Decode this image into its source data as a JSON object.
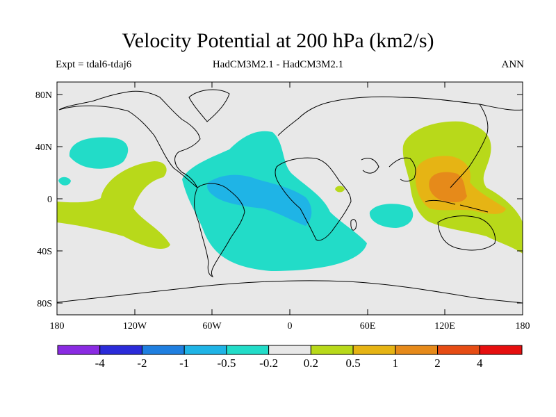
{
  "title": "Velocity Potential at 200 hPa (km2/s)",
  "subtitle_left": "Expt = tdal6-tdaj6",
  "subtitle_center": "HadCM3M2.1 - HadCM3M2.1",
  "subtitle_right": "ANN",
  "y_ticks": [
    "80N",
    "40N",
    "0",
    "40S",
    "80S"
  ],
  "x_ticks": [
    "180",
    "120W",
    "60W",
    "0",
    "60E",
    "120E",
    "180"
  ],
  "colorbar": {
    "colors": [
      "#8a2be2",
      "#2b2bd9",
      "#1f7fe0",
      "#1fb4e6",
      "#22dcc8",
      "#e8e8e8",
      "#b8d91a",
      "#e6b414",
      "#e68a1a",
      "#e64c14",
      "#e60f0f"
    ],
    "labels": [
      "-4",
      "-2",
      "-1",
      "-0.5",
      "-0.2",
      "0.2",
      "0.5",
      "1",
      "2",
      "4"
    ]
  },
  "colors": {
    "land_bg": "#e8e8e8",
    "teal": "#22dcc8",
    "blue": "#1fb4e6",
    "yellowgreen": "#b8d91a",
    "orange": "#e6b414",
    "darkorange": "#e68a1a"
  }
}
